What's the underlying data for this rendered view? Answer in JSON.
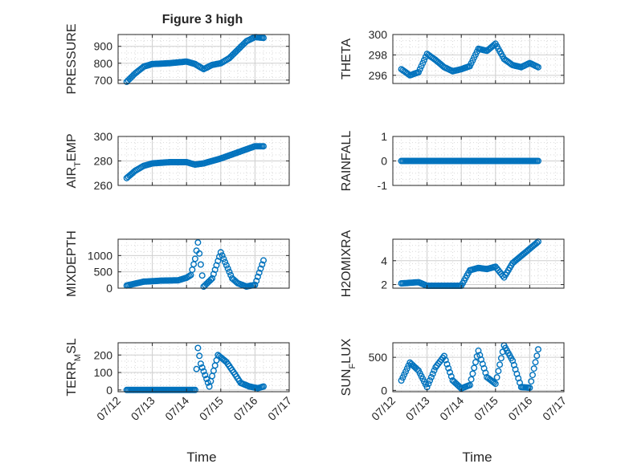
{
  "figure": {
    "title": "Figure 3 high",
    "xlabel": "Time",
    "x_ticks": [
      "07/12",
      "07/13",
      "07/14",
      "07/15",
      "07/16",
      "07/17"
    ]
  },
  "colors": {
    "marker": "#0072BD",
    "axis": "#262626",
    "grid": "#d9d9d9"
  },
  "chart_data": [
    {
      "type": "scatter",
      "ylabel": "PRESSURE",
      "ylim": [
        680,
        970
      ],
      "yticks": [
        700,
        800,
        900
      ],
      "grid": true,
      "x": [
        "07/12 06:00",
        "07/12 12:00",
        "07/12 18:00",
        "07/13 00:00",
        "07/13 12:00",
        "07/14 00:00",
        "07/14 06:00",
        "07/14 12:00",
        "07/14 18:00",
        "07/15 00:00",
        "07/15 06:00",
        "07/15 12:00",
        "07/15 18:00",
        "07/16 00:00",
        "07/16 06:00"
      ],
      "y": [
        690,
        740,
        780,
        795,
        800,
        810,
        795,
        765,
        790,
        800,
        830,
        880,
        930,
        955,
        950
      ]
    },
    {
      "type": "scatter",
      "ylabel": "THETA",
      "ylim": [
        295.2,
        300
      ],
      "yticks": [
        296,
        298,
        300
      ],
      "grid": true,
      "x": [
        "07/12 06:00",
        "07/12 12:00",
        "07/12 18:00",
        "07/13 00:00",
        "07/13 06:00",
        "07/13 12:00",
        "07/13 18:00",
        "07/14 00:00",
        "07/14 06:00",
        "07/14 12:00",
        "07/14 18:00",
        "07/15 00:00",
        "07/15 06:00",
        "07/15 12:00",
        "07/15 18:00",
        "07/16 00:00",
        "07/16 06:00"
      ],
      "y": [
        296.6,
        296.0,
        296.3,
        298.1,
        297.5,
        296.8,
        296.4,
        296.6,
        296.9,
        298.6,
        298.4,
        299.1,
        297.6,
        297.0,
        296.8,
        297.2,
        296.8
      ]
    },
    {
      "type": "scatter",
      "ylabel": "AIR_TEMP",
      "ylim": [
        260,
        300
      ],
      "yticks": [
        260,
        280,
        300
      ],
      "grid": true,
      "x": [
        "07/12 06:00",
        "07/12 12:00",
        "07/12 18:00",
        "07/13 00:00",
        "07/13 12:00",
        "07/14 00:00",
        "07/14 06:00",
        "07/14 12:00",
        "07/14 18:00",
        "07/15 00:00",
        "07/15 12:00",
        "07/16 00:00",
        "07/16 06:00"
      ],
      "y": [
        266,
        272,
        276,
        278,
        279,
        279,
        277,
        278,
        280,
        282,
        287,
        292,
        292
      ]
    },
    {
      "type": "scatter",
      "ylabel": "RAINFALL",
      "ylim": [
        -1,
        1
      ],
      "yticks": [
        -1,
        0,
        1
      ],
      "grid": true,
      "x": [
        "07/12 06:00",
        "07/16 06:00"
      ],
      "y": [
        0,
        0
      ]
    },
    {
      "type": "scatter",
      "ylabel": "MIXDEPTH",
      "ylim": [
        0,
        1500
      ],
      "yticks": [
        0,
        500,
        1000
      ],
      "grid": true,
      "x": [
        "07/12 06:00",
        "07/12 18:00",
        "07/13 06:00",
        "07/13 18:00",
        "07/14 00:00",
        "07/14 03:00",
        "07/14 06:00",
        "07/14 08:00",
        "07/14 12:00",
        "07/14 18:00",
        "07/15 00:00",
        "07/15 04:00",
        "07/15 08:00",
        "07/15 12:00",
        "07/15 18:00",
        "07/16 00:00",
        "07/16 06:00"
      ],
      "y": [
        80,
        200,
        230,
        240,
        320,
        400,
        900,
        1400,
        50,
        300,
        1100,
        700,
        300,
        150,
        50,
        100,
        850
      ]
    },
    {
      "type": "scatter",
      "ylabel": "H2OMIXRA",
      "ylim": [
        1.7,
        5.8
      ],
      "yticks": [
        2,
        4
      ],
      "grid": true,
      "x": [
        "07/12 06:00",
        "07/12 18:00",
        "07/13 00:00",
        "07/13 12:00",
        "07/14 00:00",
        "07/14 06:00",
        "07/14 12:00",
        "07/14 18:00",
        "07/15 00:00",
        "07/15 06:00",
        "07/15 12:00",
        "07/15 18:00",
        "07/16 00:00",
        "07/16 06:00"
      ],
      "y": [
        2.1,
        2.2,
        1.9,
        1.9,
        1.9,
        3.2,
        3.4,
        3.3,
        3.5,
        2.6,
        3.8,
        4.4,
        5.0,
        5.6
      ]
    },
    {
      "type": "scatter",
      "ylabel": "TERR_MSL",
      "ylim": [
        -10,
        270
      ],
      "yticks": [
        0,
        100,
        200
      ],
      "grid": true,
      "x": [
        "07/12 06:00",
        "07/13 06:00",
        "07/14 06:00",
        "07/14 08:00",
        "07/14 10:00",
        "07/14 16:00",
        "07/14 22:00",
        "07/15 04:00",
        "07/15 10:00",
        "07/15 14:00",
        "07/15 20:00",
        "07/16 02:00",
        "07/16 06:00"
      ],
      "y": [
        0,
        0,
        0,
        240,
        150,
        20,
        200,
        160,
        90,
        40,
        20,
        10,
        20
      ]
    },
    {
      "type": "scatter",
      "ylabel": "SUN_FLUX",
      "ylim": [
        -20,
        720
      ],
      "yticks": [
        0,
        500
      ],
      "grid": true,
      "x": [
        "07/12 06:00",
        "07/12 12:00",
        "07/12 18:00",
        "07/13 00:00",
        "07/13 06:00",
        "07/13 12:00",
        "07/13 18:00",
        "07/14 00:00",
        "07/14 06:00",
        "07/14 12:00",
        "07/14 18:00",
        "07/15 00:00",
        "07/15 06:00",
        "07/15 12:00",
        "07/15 18:00",
        "07/16 00:00",
        "07/16 06:00"
      ],
      "y": [
        150,
        420,
        300,
        50,
        350,
        520,
        150,
        30,
        80,
        600,
        200,
        100,
        680,
        450,
        50,
        40,
        620
      ]
    }
  ]
}
